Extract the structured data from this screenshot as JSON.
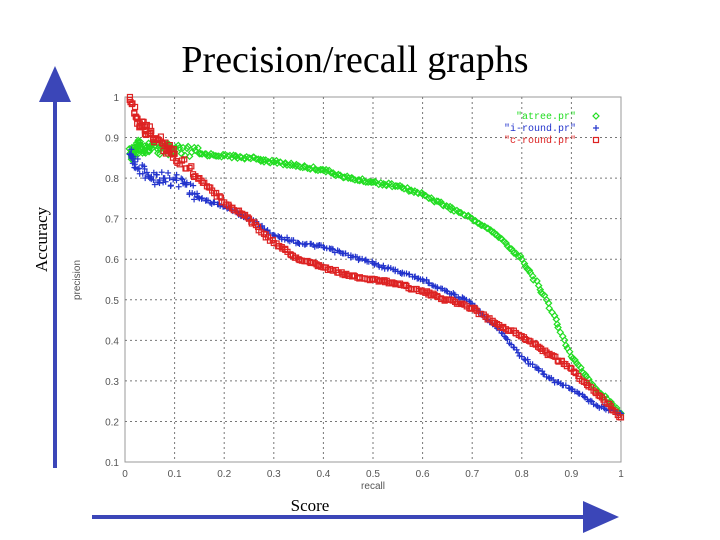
{
  "slide": {
    "title": "Precision/recall graphs",
    "side_label": "Accuracy",
    "bottom_label": "Score"
  },
  "colors": {
    "arrow": "#3b46b8",
    "grid": "#777777",
    "frame": "#999999"
  },
  "chart_data": {
    "type": "scatter",
    "xlabel": "recall",
    "ylabel": "precision",
    "xlim": [
      0,
      1
    ],
    "ylim": [
      0.1,
      1
    ],
    "xticks": [
      "0",
      "0.1",
      "0.2",
      "0.3",
      "0.4",
      "0.5",
      "0.6",
      "0.7",
      "0.8",
      "0.9",
      "1"
    ],
    "yticks": [
      "0.1",
      "0.2",
      "0.3",
      "0.4",
      "0.5",
      "0.6",
      "0.7",
      "0.8",
      "0.9",
      "1"
    ],
    "legend_position": "top-right",
    "series": [
      {
        "name": "\"atree.pr\"",
        "marker": "◇",
        "color": "#22dd22",
        "points": [
          [
            0.01,
            0.86
          ],
          [
            0.02,
            0.87
          ],
          [
            0.03,
            0.88
          ],
          [
            0.05,
            0.875
          ],
          [
            0.08,
            0.87
          ],
          [
            0.1,
            0.865
          ],
          [
            0.15,
            0.86
          ],
          [
            0.2,
            0.855
          ],
          [
            0.25,
            0.85
          ],
          [
            0.3,
            0.84
          ],
          [
            0.35,
            0.83
          ],
          [
            0.4,
            0.82
          ],
          [
            0.45,
            0.8
          ],
          [
            0.5,
            0.79
          ],
          [
            0.55,
            0.78
          ],
          [
            0.6,
            0.76
          ],
          [
            0.65,
            0.73
          ],
          [
            0.7,
            0.7
          ],
          [
            0.75,
            0.66
          ],
          [
            0.8,
            0.6
          ],
          [
            0.85,
            0.5
          ],
          [
            0.9,
            0.36
          ],
          [
            0.95,
            0.28
          ],
          [
            1.0,
            0.22
          ]
        ]
      },
      {
        "name": "\"i-round.pr\"",
        "marker": "+",
        "color": "#2233cc",
        "points": [
          [
            0.01,
            0.86
          ],
          [
            0.02,
            0.84
          ],
          [
            0.05,
            0.8
          ],
          [
            0.08,
            0.8
          ],
          [
            0.12,
            0.79
          ],
          [
            0.15,
            0.75
          ],
          [
            0.2,
            0.73
          ],
          [
            0.25,
            0.7
          ],
          [
            0.3,
            0.66
          ],
          [
            0.35,
            0.64
          ],
          [
            0.4,
            0.63
          ],
          [
            0.45,
            0.61
          ],
          [
            0.5,
            0.59
          ],
          [
            0.55,
            0.57
          ],
          [
            0.6,
            0.55
          ],
          [
            0.65,
            0.52
          ],
          [
            0.7,
            0.49
          ],
          [
            0.75,
            0.43
          ],
          [
            0.8,
            0.36
          ],
          [
            0.85,
            0.31
          ],
          [
            0.9,
            0.28
          ],
          [
            0.95,
            0.24
          ],
          [
            1.0,
            0.22
          ]
        ]
      },
      {
        "name": "\"c-round.pr\"",
        "marker": "□",
        "color": "#dd2222",
        "points": [
          [
            0.01,
            1.0
          ],
          [
            0.03,
            0.93
          ],
          [
            0.05,
            0.91
          ],
          [
            0.08,
            0.88
          ],
          [
            0.1,
            0.86
          ],
          [
            0.15,
            0.8
          ],
          [
            0.2,
            0.74
          ],
          [
            0.25,
            0.7
          ],
          [
            0.3,
            0.64
          ],
          [
            0.35,
            0.6
          ],
          [
            0.4,
            0.58
          ],
          [
            0.45,
            0.56
          ],
          [
            0.5,
            0.55
          ],
          [
            0.55,
            0.54
          ],
          [
            0.6,
            0.52
          ],
          [
            0.65,
            0.5
          ],
          [
            0.7,
            0.48
          ],
          [
            0.75,
            0.44
          ],
          [
            0.8,
            0.41
          ],
          [
            0.85,
            0.37
          ],
          [
            0.9,
            0.33
          ],
          [
            0.95,
            0.27
          ],
          [
            1.0,
            0.21
          ]
        ]
      }
    ]
  }
}
